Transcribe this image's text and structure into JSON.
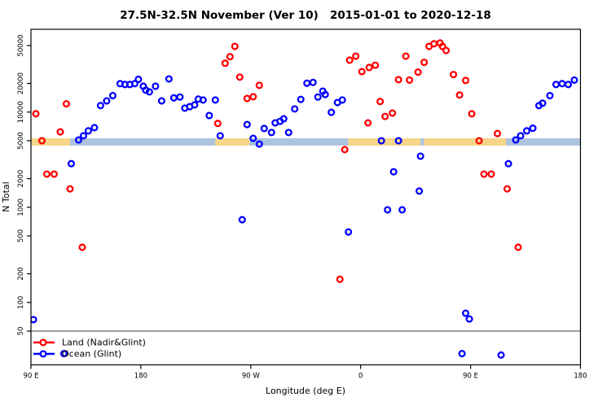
{
  "chart_data": {
    "type": "scatter",
    "title": "27.5N-32.5N November (Ver 10)   2015-01-01 to 2020-12-18",
    "xlabel": "Longitude (deg E)",
    "ylabel": "N Total",
    "grid": false,
    "x_axis": {
      "min": 90,
      "max": 540,
      "unit": "deg E (wraps across dateline)",
      "ticks": [
        {
          "value": 90,
          "label": "90 E"
        },
        {
          "value": 180,
          "label": "180"
        },
        {
          "value": 270,
          "label": "90 W"
        },
        {
          "value": 360,
          "label": "0"
        },
        {
          "value": 450,
          "label": "90 E"
        },
        {
          "value": 540,
          "label": "180"
        }
      ]
    },
    "y_axis": {
      "scale": "log",
      "ticks": [
        {
          "value": 50,
          "label": "50"
        },
        {
          "value": 100,
          "label": "100"
        },
        {
          "value": 200,
          "label": "200"
        },
        {
          "value": 500,
          "label": "500"
        },
        {
          "value": 1000,
          "label": "1000"
        },
        {
          "value": 2000,
          "label": "2000"
        },
        {
          "value": 5000,
          "label": "5000"
        },
        {
          "value": 10000,
          "label": "10000"
        },
        {
          "value": 20000,
          "label": "20000"
        },
        {
          "value": 50000,
          "label": "50000"
        }
      ]
    },
    "reference_line": {
      "value": 50,
      "color": "#7f7f7f"
    },
    "surface_band": {
      "center_value": 5000,
      "colors": {
        "land": "#f7d589",
        "ocean": "#aec3de"
      },
      "segments": [
        {
          "from": 90,
          "to": 122,
          "type": "land"
        },
        {
          "from": 122,
          "to": 241,
          "type": "ocean"
        },
        {
          "from": 241,
          "to": 269,
          "type": "land"
        },
        {
          "from": 269,
          "to": 350,
          "type": "ocean"
        },
        {
          "from": 350,
          "to": 409,
          "type": "land"
        },
        {
          "from": 409,
          "to": 412,
          "type": "ocean"
        },
        {
          "from": 412,
          "to": 479,
          "type": "land"
        },
        {
          "from": 479,
          "to": 540,
          "type": "ocean"
        }
      ]
    },
    "legend": {
      "position": "bottom-left",
      "entries": [
        {
          "label": "Land (Nadir&Glint)",
          "color": "#ff0000"
        },
        {
          "label": "Ocean (Glint)",
          "color": "#0000ff"
        }
      ]
    },
    "series": [
      {
        "name": "Land (Nadir&Glint)",
        "color": "#ff0000",
        "points": [
          [
            94,
            9600
          ],
          [
            99,
            5000
          ],
          [
            103,
            2230
          ],
          [
            109,
            2230
          ],
          [
            114,
            6200
          ],
          [
            119,
            12200
          ],
          [
            122,
            1560
          ],
          [
            132,
            380
          ],
          [
            243,
            7600
          ],
          [
            249,
            32600
          ],
          [
            253,
            38200
          ],
          [
            257,
            49000
          ],
          [
            261,
            23300
          ],
          [
            267,
            13900
          ],
          [
            272,
            14500
          ],
          [
            277,
            19100
          ],
          [
            343,
            175
          ],
          [
            347,
            4030
          ],
          [
            351,
            35100
          ],
          [
            356,
            38700
          ],
          [
            361,
            26600
          ],
          [
            366,
            7700
          ],
          [
            367,
            29400
          ],
          [
            372,
            31100
          ],
          [
            376,
            12900
          ],
          [
            380,
            9000
          ],
          [
            386,
            9760
          ],
          [
            391,
            21900
          ],
          [
            397,
            38700
          ],
          [
            400,
            21700
          ],
          [
            407,
            26300
          ],
          [
            412,
            33300
          ],
          [
            416,
            49000
          ],
          [
            420,
            52200
          ],
          [
            425,
            53200
          ],
          [
            427,
            49000
          ],
          [
            430,
            44400
          ],
          [
            436,
            24800
          ],
          [
            441,
            15100
          ],
          [
            446,
            21500
          ],
          [
            451,
            9600
          ],
          [
            457,
            5000
          ],
          [
            461,
            2230
          ],
          [
            467,
            2230
          ],
          [
            472,
            5950
          ],
          [
            480,
            1560
          ],
          [
            489,
            380
          ]
        ]
      },
      {
        "name": "Ocean (Glint)",
        "color": "#0000ff",
        "points": [
          [
            92,
            66
          ],
          [
            117,
            29
          ],
          [
            123,
            2870
          ],
          [
            129,
            5100
          ],
          [
            133,
            5640
          ],
          [
            137,
            6350
          ],
          [
            142,
            6860
          ],
          [
            147,
            11700
          ],
          [
            152,
            13100
          ],
          [
            157,
            14900
          ],
          [
            163,
            19900
          ],
          [
            167,
            19500
          ],
          [
            171,
            19500
          ],
          [
            175,
            19900
          ],
          [
            178,
            22100
          ],
          [
            182,
            18700
          ],
          [
            184,
            17000
          ],
          [
            187,
            16300
          ],
          [
            192,
            18700
          ],
          [
            197,
            13100
          ],
          [
            203,
            22300
          ],
          [
            207,
            14100
          ],
          [
            212,
            14400
          ],
          [
            216,
            11000
          ],
          [
            220,
            11400
          ],
          [
            224,
            11900
          ],
          [
            227,
            13700
          ],
          [
            231,
            13400
          ],
          [
            236,
            9200
          ],
          [
            241,
            13400
          ],
          [
            245,
            5640
          ],
          [
            263,
            740
          ],
          [
            267,
            7400
          ],
          [
            272,
            5300
          ],
          [
            277,
            4610
          ],
          [
            281,
            6720
          ],
          [
            287,
            6100
          ],
          [
            290,
            7700
          ],
          [
            294,
            8000
          ],
          [
            297,
            8500
          ],
          [
            301,
            6100
          ],
          [
            306,
            10800
          ],
          [
            311,
            13600
          ],
          [
            316,
            20100
          ],
          [
            321,
            20500
          ],
          [
            325,
            14400
          ],
          [
            329,
            16600
          ],
          [
            331,
            15300
          ],
          [
            336,
            9950
          ],
          [
            341,
            12600
          ],
          [
            345,
            13400
          ],
          [
            350,
            550
          ],
          [
            377,
            5000
          ],
          [
            382,
            940
          ],
          [
            387,
            2360
          ],
          [
            391,
            5000
          ],
          [
            394,
            940
          ],
          [
            408,
            1480
          ],
          [
            409,
            3440
          ],
          [
            443,
            29
          ],
          [
            446,
            77
          ],
          [
            449,
            67
          ],
          [
            475,
            28
          ],
          [
            481,
            2870
          ],
          [
            487,
            5100
          ],
          [
            491,
            5640
          ],
          [
            496,
            6350
          ],
          [
            501,
            6770
          ],
          [
            506,
            11700
          ],
          [
            509,
            12400
          ],
          [
            515,
            14900
          ],
          [
            520,
            19500
          ],
          [
            525,
            19900
          ],
          [
            530,
            19500
          ],
          [
            535,
            21700
          ]
        ]
      }
    ]
  }
}
